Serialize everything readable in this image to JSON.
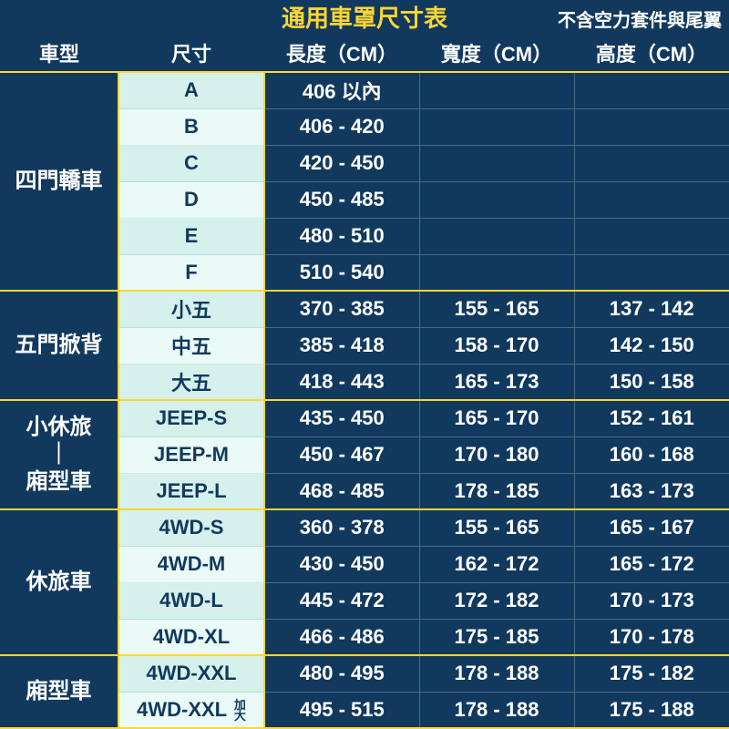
{
  "title": "通用車罩尺寸表",
  "note": "不含空力套件與尾翼",
  "columns": [
    "車型",
    "尺寸",
    "長度（CM）",
    "寬度（CM）",
    "高度（CM）"
  ],
  "groups": [
    {
      "name": "四門轎車",
      "rows": [
        {
          "size": "A",
          "len": "406 以內",
          "wid": "",
          "hgt": ""
        },
        {
          "size": "B",
          "len": "406 - 420",
          "wid": "",
          "hgt": ""
        },
        {
          "size": "C",
          "len": "420 - 450",
          "wid": "",
          "hgt": ""
        },
        {
          "size": "D",
          "len": "450 - 485",
          "wid": "",
          "hgt": ""
        },
        {
          "size": "E",
          "len": "480 - 510",
          "wid": "",
          "hgt": ""
        },
        {
          "size": "F",
          "len": "510 - 540",
          "wid": "",
          "hgt": ""
        }
      ]
    },
    {
      "name": "五門掀背",
      "rows": [
        {
          "size": "小五",
          "len": "370 - 385",
          "wid": "155 - 165",
          "hgt": "137 - 142"
        },
        {
          "size": "中五",
          "len": "385 - 418",
          "wid": "158 - 170",
          "hgt": "142 - 150"
        },
        {
          "size": "大五",
          "len": "418 - 443",
          "wid": "165 - 173",
          "hgt": "150 - 158"
        }
      ]
    },
    {
      "name": "小休旅<br>｜<br>廂型車",
      "rows": [
        {
          "size": "JEEP-S",
          "len": "435 - 450",
          "wid": "165 - 170",
          "hgt": "152 - 161"
        },
        {
          "size": "JEEP-M",
          "len": "450 - 467",
          "wid": "170 - 180",
          "hgt": "160 - 168"
        },
        {
          "size": "JEEP-L",
          "len": "468 - 485",
          "wid": "178 - 185",
          "hgt": "163 - 173"
        }
      ]
    },
    {
      "name": "休旅車",
      "rows": [
        {
          "size": "4WD-S",
          "len": "360 - 378",
          "wid": "155 - 165",
          "hgt": "165 - 167"
        },
        {
          "size": "4WD-M",
          "len": "430 - 450",
          "wid": "162 - 172",
          "hgt": "165 - 172"
        },
        {
          "size": "4WD-L",
          "len": "445 - 472",
          "wid": "172 - 182",
          "hgt": "170 - 173"
        },
        {
          "size": "4WD-XL",
          "len": "466 - 486",
          "wid": "175 - 185",
          "hgt": "170 - 178"
        }
      ]
    },
    {
      "name": "廂型車",
      "rows": [
        {
          "size": "4WD-XXL",
          "len": "480 - 495",
          "wid": "178 - 188",
          "hgt": "175 - 182"
        },
        {
          "size": "4WD-XXL",
          "suffix": "加大",
          "len": "495 - 515",
          "wid": "178 - 188",
          "hgt": "175 - 188"
        }
      ]
    }
  ],
  "colors": {
    "bg": "#11395e",
    "accent": "#ffd633",
    "size_a": "#d6f0eb",
    "size_b": "#eafaf6",
    "grid": "#4a6b87",
    "text_light": "#ffffff",
    "text_dark": "#11395e"
  }
}
